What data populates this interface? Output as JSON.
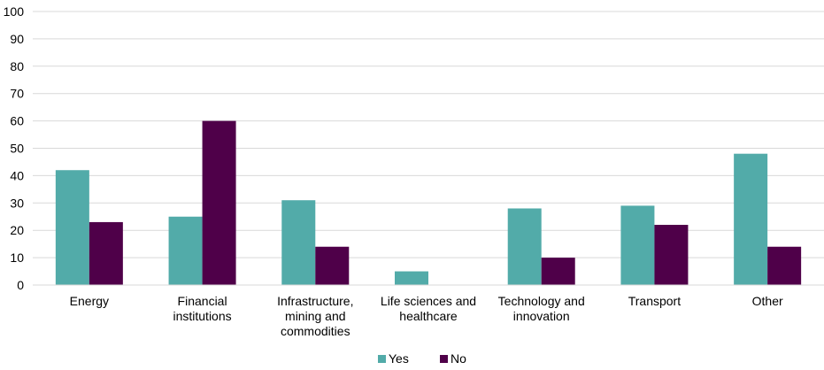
{
  "chart_data": {
    "type": "bar",
    "categories": [
      [
        "Energy"
      ],
      [
        "Financial",
        "institutions"
      ],
      [
        "Infrastructure,",
        "mining and",
        "commodities"
      ],
      [
        "Life sciences and",
        "healthcare"
      ],
      [
        "Technology and",
        "innovation"
      ],
      [
        "Transport"
      ],
      [
        "Other"
      ]
    ],
    "series": [
      {
        "name": "Yes",
        "color": "#52ABA9",
        "values": [
          42,
          25,
          31,
          5,
          28,
          29,
          48
        ]
      },
      {
        "name": "No",
        "color": "#4F0049",
        "values": [
          23,
          60,
          14,
          0,
          10,
          22,
          14
        ]
      }
    ],
    "yticks": [
      "0",
      "10",
      "20",
      "30",
      "40",
      "50",
      "60",
      "70",
      "80",
      "90",
      "100"
    ],
    "ylim": [
      0,
      100
    ],
    "grid": true,
    "legend_position": "bottom-center",
    "title": "",
    "xlabel": "",
    "ylabel": ""
  }
}
